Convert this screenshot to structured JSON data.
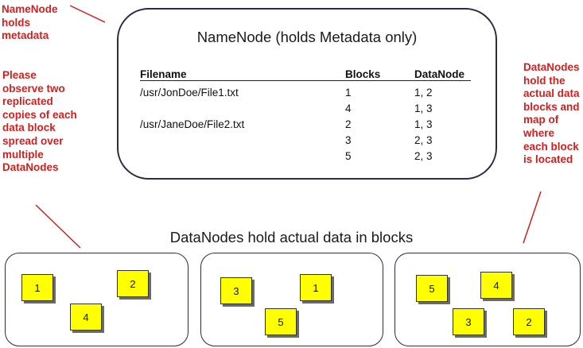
{
  "annotations": {
    "namenode_note": "NameNode\nholds\nmetadata",
    "replica_note": "Please\nobserve two\nreplicated\ncopies of each\ndata block\nspread over\nmultiple\nDataNodes",
    "datanode_note": "DataNodes\nhold the\nactual data\nblocks and\nmap of\nwhere\neach block\nis located",
    "color": "#d21f1f"
  },
  "namenode": {
    "title": "NameNode (holds Metadata only)",
    "headers": {
      "filename": "Filename",
      "blocks": "Blocks",
      "datanode": "DataNode"
    },
    "rows": [
      {
        "filename": "/usr/JonDoe/File1.txt",
        "block": "1",
        "datanode": "1, 2"
      },
      {
        "filename": "",
        "block": "4",
        "datanode": "1, 3"
      },
      {
        "filename": "/usr/JaneDoe/File2.txt",
        "block": "2",
        "datanode": "1, 3"
      },
      {
        "filename": "",
        "block": "3",
        "datanode": "2, 3"
      },
      {
        "filename": "",
        "block": "5",
        "datanode": "2, 3"
      }
    ]
  },
  "datanodes_caption": "DataNodes hold actual data in blocks",
  "datanodes": [
    {
      "blocks": [
        "1",
        "2",
        "4"
      ]
    },
    {
      "blocks": [
        "3",
        "1",
        "5"
      ]
    },
    {
      "blocks": [
        "5",
        "4",
        "3",
        "2"
      ]
    }
  ],
  "block_color": "#ffff00"
}
